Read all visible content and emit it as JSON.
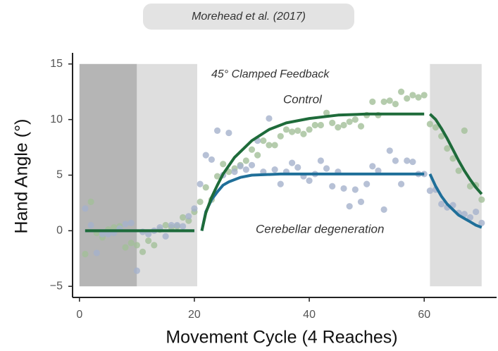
{
  "chart_data": {
    "type": "scatter",
    "title": "Morehead et al. (2017)",
    "x_label": "Movement Cycle (4 Reaches)",
    "y_label": "Hand Angle (°)",
    "annotations": [
      "45° Clamped Feedback"
    ],
    "xlim": [
      -1.2,
      72.6
    ],
    "ylim": [
      -6,
      16
    ],
    "xticks": [
      0,
      20,
      40,
      60
    ],
    "yticks": [
      {
        "value": -5,
        "label": "−5"
      },
      0,
      5,
      10,
      15
    ],
    "shaded": [
      {
        "x": [
          0,
          10
        ],
        "y": [
          -5,
          15
        ],
        "color": "#b5b5b5"
      },
      {
        "x": [
          10,
          20.5
        ],
        "y": [
          -5,
          15
        ],
        "color": "#dedede"
      },
      {
        "x": [
          61,
          70
        ],
        "y": [
          -5,
          15
        ],
        "color": "#dedede"
      }
    ],
    "x": [
      1,
      2,
      3,
      4,
      5,
      6,
      7,
      8,
      9,
      10,
      11,
      12,
      13,
      14,
      15,
      16,
      17,
      18,
      19,
      20,
      21,
      22,
      23,
      24,
      25,
      26,
      27,
      28,
      29,
      30,
      31,
      32,
      33,
      34,
      35,
      36,
      37,
      38,
      39,
      40,
      41,
      42,
      43,
      44,
      45,
      46,
      47,
      48,
      49,
      50,
      51,
      52,
      53,
      54,
      55,
      56,
      57,
      58,
      59,
      60,
      61,
      62,
      63,
      64,
      65,
      66,
      67,
      68,
      69,
      70
    ],
    "series": [
      {
        "name": "Control",
        "color": "#a3bf98",
        "line_color": "#1e6b3a",
        "values": [
          -2.1,
          2.6,
          -0.2,
          -0.6,
          0.1,
          0.3,
          0.4,
          -1.5,
          -1.1,
          -1.3,
          -1.9,
          -0.9,
          -1.3,
          0.1,
          0.5,
          0.3,
          0.4,
          1.2,
          0.9,
          1.7,
          2.6,
          3.9,
          2.8,
          4.9,
          6.0,
          5.3,
          5.6,
          5.9,
          6.3,
          7.3,
          6.8,
          8.1,
          7.7,
          7.7,
          8.5,
          9.1,
          8.9,
          9.0,
          8.7,
          9.1,
          9.5,
          9.5,
          10.6,
          9.7,
          9.3,
          9.5,
          9.8,
          10.0,
          9.4,
          10.4,
          11.6,
          10.4,
          11.6,
          11.7,
          11.4,
          12.5,
          11.9,
          12.2,
          12.0,
          12.2,
          9.6,
          9.3,
          8.5,
          7.4,
          6.5,
          5.4,
          9.0,
          4.0,
          4.1,
          2.8
        ],
        "fit_x": [
          1,
          20,
          null,
          21.3,
          22,
          23,
          24,
          25,
          27,
          30,
          33,
          36,
          40,
          45,
          50,
          60,
          null,
          61,
          62,
          63,
          64,
          65,
          66,
          67,
          68,
          69,
          70
        ],
        "fit_values": [
          0,
          0,
          null,
          0,
          1.6,
          3.0,
          4.1,
          5.1,
          6.6,
          8.1,
          9.1,
          9.7,
          10.1,
          10.4,
          10.5,
          10.5,
          null,
          10.5,
          10.0,
          9.2,
          8.3,
          7.3,
          6.3,
          5.4,
          4.6,
          3.9,
          3.3
        ]
      },
      {
        "name": "Cerebellar degeneration",
        "color": "#a5b1cc",
        "line_color": "#1f6f99",
        "values": [
          2.0,
          0.5,
          -2.0,
          -0.3,
          -0.3,
          -0.2,
          0.2,
          0.6,
          0.7,
          -3.6,
          -0.1,
          -0.3,
          0.0,
          0.3,
          -0.5,
          0.5,
          0.5,
          0.4,
          1.3,
          2.0,
          4.2,
          6.8,
          6.4,
          9.0,
          5.0,
          8.8,
          5.3,
          5.8,
          5.5,
          5.9,
          8.1,
          5.3,
          10.1,
          5.5,
          4.2,
          5.3,
          6.1,
          5.7,
          4.9,
          4.5,
          5.1,
          6.3,
          5.6,
          4.0,
          5.3,
          3.8,
          2.2,
          3.7,
          2.6,
          4.2,
          5.8,
          5.4,
          1.9,
          7.2,
          6.3,
          4.2,
          6.3,
          6.2,
          5.1,
          5.1,
          3.6,
          3.7,
          2.4,
          2.1,
          2.3,
          1.6,
          1.5,
          1.2,
          1.7,
          0.7
        ],
        "fit_x": [
          1,
          20,
          null,
          21.3,
          22,
          23,
          24,
          25,
          26,
          28,
          30,
          35,
          60,
          null,
          61,
          62,
          63,
          64,
          65,
          66,
          67,
          68,
          69,
          70
        ],
        "fit_values": [
          0,
          0,
          null,
          0,
          1.7,
          2.8,
          3.5,
          4.1,
          4.4,
          4.8,
          5.0,
          5.1,
          5.1,
          null,
          5.1,
          4.0,
          3.1,
          2.4,
          1.9,
          1.4,
          1.1,
          0.8,
          0.5,
          0.3
        ]
      }
    ]
  }
}
